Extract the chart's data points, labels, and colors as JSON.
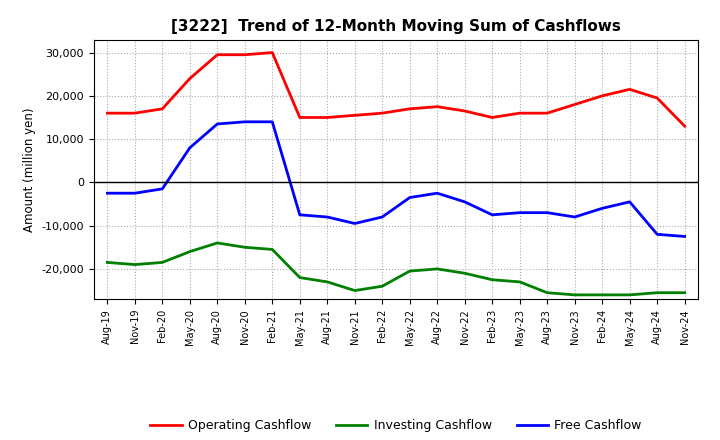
{
  "title": "[3222]  Trend of 12-Month Moving Sum of Cashflows",
  "ylabel": "Amount (million yen)",
  "xlabels": [
    "Aug-19",
    "Nov-19",
    "Feb-20",
    "May-20",
    "Aug-20",
    "Nov-20",
    "Feb-21",
    "May-21",
    "Aug-21",
    "Nov-21",
    "Feb-22",
    "May-22",
    "Aug-22",
    "Nov-22",
    "Feb-23",
    "May-23",
    "Aug-23",
    "Nov-23",
    "Feb-24",
    "May-24",
    "Aug-24",
    "Nov-24"
  ],
  "operating": [
    16000,
    16000,
    17000,
    24000,
    29500,
    29500,
    30000,
    15000,
    15000,
    15500,
    16000,
    17000,
    17500,
    16500,
    15000,
    16000,
    16000,
    18000,
    20000,
    21500,
    19500,
    13000
  ],
  "investing": [
    -18500,
    -19000,
    -18500,
    -16000,
    -14000,
    -15000,
    -15500,
    -22000,
    -23000,
    -25000,
    -24000,
    -20500,
    -20000,
    -21000,
    -22500,
    -23000,
    -25500,
    -26000,
    -26000,
    -26000,
    -25500,
    -25500
  ],
  "free": [
    -2500,
    -2500,
    -1500,
    8000,
    13500,
    14000,
    14000,
    -7500,
    -8000,
    -9500,
    -8000,
    -3500,
    -2500,
    -4500,
    -7500,
    -7000,
    -7000,
    -8000,
    -6000,
    -4500,
    -12000,
    -12500
  ],
  "operating_color": "#ff0000",
  "investing_color": "#008000",
  "free_color": "#0000ff",
  "background_color": "#ffffff",
  "grid_color": "#aaaaaa",
  "ylim": [
    -27000,
    33000
  ],
  "yticks": [
    -20000,
    -10000,
    0,
    10000,
    20000,
    30000
  ],
  "linewidth": 2.0
}
